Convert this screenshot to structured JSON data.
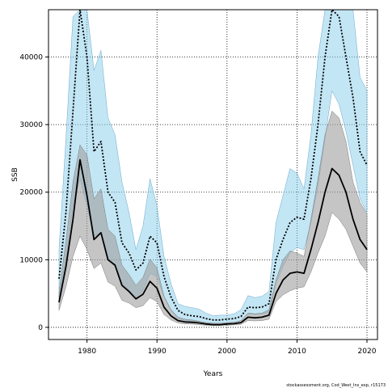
{
  "chart_data": {
    "type": "line",
    "xlabel": "Years",
    "ylabel": "SSB",
    "xlim": [
      1974.5,
      2021.5
    ],
    "ylim": [
      -1800,
      47000
    ],
    "x_ticks": [
      1980,
      1990,
      2000,
      2010,
      2020
    ],
    "y_ticks": [
      0,
      10000,
      20000,
      30000,
      40000
    ],
    "grid": true,
    "credit": "stockassessment.org, Cod_West_Ins_exp, r15173",
    "colors": {
      "blue_band": "#87CEEB",
      "blue_band_edge": "#6aa8c8",
      "grey_band": "#9e9e9e",
      "grey_band_edge": "#7a7a7a",
      "line": "#000000"
    },
    "x": [
      1976,
      1977,
      1978,
      1979,
      1980,
      1981,
      1982,
      1983,
      1984,
      1985,
      1986,
      1987,
      1988,
      1989,
      1990,
      1991,
      1992,
      1993,
      1994,
      1995,
      1996,
      1997,
      1998,
      1999,
      2000,
      2001,
      2002,
      2003,
      2004,
      2005,
      2006,
      2007,
      2008,
      2009,
      2010,
      2011,
      2012,
      2013,
      2014,
      2015,
      2016,
      2017,
      2018,
      2019,
      2020
    ],
    "series": [
      {
        "style": "dotted",
        "values": [
          7200,
          17000,
          32000,
          47500,
          40000,
          26000,
          27500,
          20000,
          18500,
          12500,
          11000,
          8500,
          9500,
          13500,
          12500,
          7500,
          4500,
          2500,
          1900,
          1700,
          1600,
          1300,
          1100,
          1100,
          1200,
          1300,
          1600,
          3000,
          2900,
          3000,
          3500,
          10000,
          13000,
          15500,
          16300,
          16000,
          22000,
          30000,
          40000,
          47000,
          46000,
          40000,
          34000,
          26000,
          24000
        ],
        "lower": [
          4500,
          10000,
          18000,
          22000,
          18000,
          13500,
          14000,
          10000,
          9000,
          6500,
          5500,
          4300,
          5500,
          8000,
          7500,
          4500,
          2500,
          1300,
          1000,
          900,
          850,
          700,
          600,
          600,
          650,
          750,
          1000,
          2000,
          1900,
          2000,
          2200,
          6500,
          9000,
          11000,
          11800,
          11500,
          15500,
          21000,
          28000,
          35000,
          33000,
          29000,
          24000,
          19000,
          17000
        ],
        "upper": [
          11500,
          28000,
          46000,
          47000,
          47000,
          38000,
          41000,
          31000,
          28500,
          21500,
          17000,
          11500,
          15000,
          22000,
          18000,
          10500,
          6500,
          3500,
          3100,
          2900,
          2700,
          2100,
          1700,
          1800,
          1800,
          2000,
          2600,
          4700,
          4400,
          4600,
          5300,
          15500,
          19500,
          23500,
          22800,
          20500,
          28500,
          40000,
          47000,
          47000,
          47000,
          47000,
          47000,
          37000,
          35000
        ]
      },
      {
        "style": "solid",
        "values": [
          3700,
          9000,
          16000,
          24800,
          19500,
          13000,
          14000,
          10000,
          9200,
          6200,
          5300,
          4200,
          4900,
          6800,
          5800,
          3000,
          1700,
          1000,
          800,
          750,
          650,
          500,
          400,
          400,
          500,
          550,
          700,
          1500,
          1400,
          1500,
          1800,
          5000,
          7000,
          8000,
          8200,
          8000,
          11500,
          15500,
          20000,
          23500,
          22500,
          20000,
          16000,
          13000,
          11500
        ],
        "lower": [
          2500,
          6000,
          10500,
          13500,
          11500,
          8700,
          9500,
          6700,
          6100,
          4000,
          3600,
          2900,
          3200,
          4400,
          3800,
          1900,
          1100,
          650,
          500,
          480,
          400,
          300,
          250,
          260,
          320,
          360,
          450,
          1000,
          950,
          1000,
          1200,
          3800,
          4800,
          5400,
          5800,
          6000,
          8200,
          11000,
          13500,
          17000,
          16000,
          14500,
          12000,
          9500,
          8200
        ],
        "upper": [
          5200,
          12800,
          21500,
          27000,
          25500,
          19000,
          20500,
          14500,
          13500,
          9200,
          7800,
          6200,
          7400,
          10100,
          8800,
          4600,
          2600,
          1500,
          1200,
          1100,
          900,
          700,
          600,
          600,
          700,
          750,
          1000,
          2100,
          2000,
          2100,
          2600,
          7000,
          10000,
          11300,
          11000,
          10500,
          16000,
          22000,
          28500,
          32000,
          31000,
          27500,
          21500,
          18500,
          16800
        ]
      }
    ]
  }
}
